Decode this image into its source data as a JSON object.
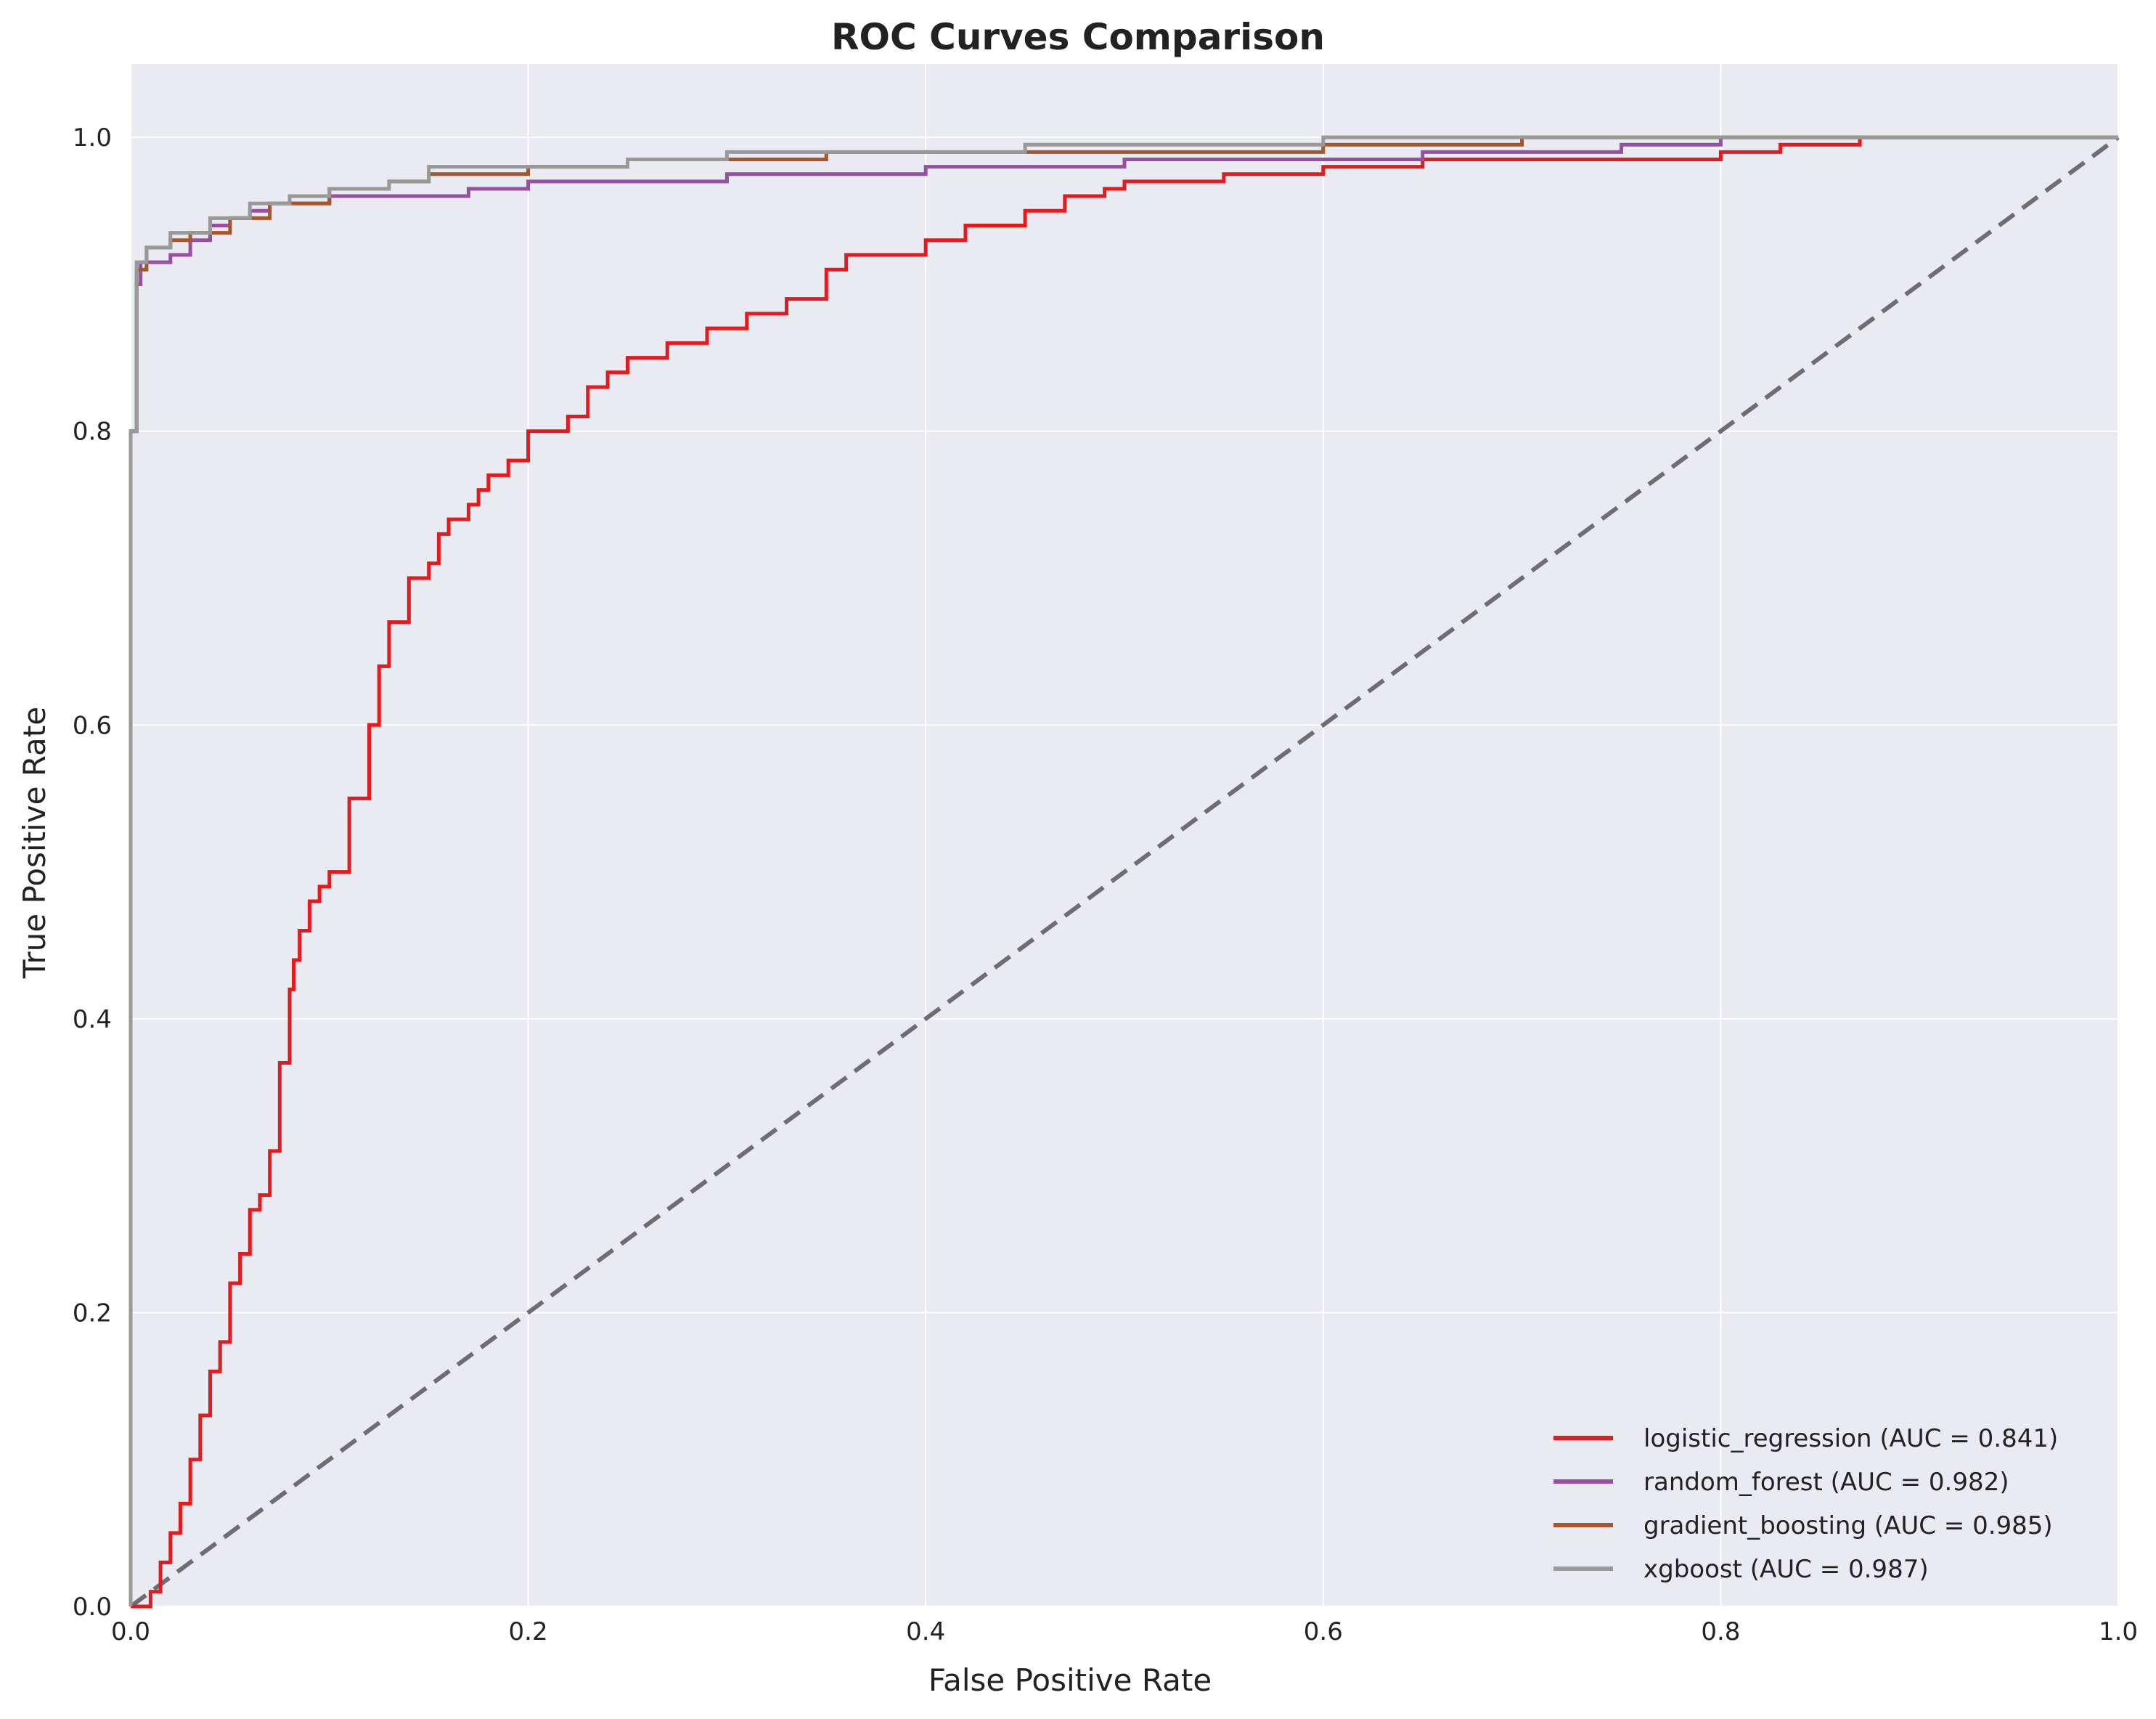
{
  "chart_data": {
    "type": "line",
    "title": "ROC Curves Comparison",
    "xlabel": "False Positive Rate",
    "ylabel": "True Positive Rate",
    "xlim": [
      0,
      1
    ],
    "ylim": [
      0,
      1.05
    ],
    "xticks": [
      "0.0",
      "0.2",
      "0.4",
      "0.6",
      "0.8",
      "1.0"
    ],
    "yticks": [
      "0.0",
      "0.2",
      "0.4",
      "0.6",
      "0.8",
      "1.0"
    ],
    "grid": true,
    "legend_position": "lower-right",
    "colors": {
      "background": "#eaeaf2",
      "grid": "#ffffff",
      "diagonal": "#6e6e72"
    },
    "series": [
      {
        "name": "logistic_regression (AUC = 0.841)",
        "color": "#e41a1c",
        "x": [
          0.0,
          0.01,
          0.015,
          0.02,
          0.025,
          0.03,
          0.035,
          0.04,
          0.045,
          0.05,
          0.055,
          0.06,
          0.065,
          0.07,
          0.075,
          0.08,
          0.082,
          0.085,
          0.09,
          0.095,
          0.1,
          0.11,
          0.12,
          0.125,
          0.13,
          0.14,
          0.15,
          0.155,
          0.16,
          0.17,
          0.175,
          0.18,
          0.19,
          0.2,
          0.22,
          0.23,
          0.24,
          0.25,
          0.27,
          0.29,
          0.31,
          0.33,
          0.35,
          0.36,
          0.38,
          0.4,
          0.42,
          0.45,
          0.47,
          0.49,
          0.5,
          0.55,
          0.6,
          0.65,
          0.66,
          0.7,
          0.8,
          0.83,
          0.87,
          0.9,
          1.0
        ],
        "y": [
          0.0,
          0.01,
          0.03,
          0.05,
          0.07,
          0.1,
          0.13,
          0.16,
          0.18,
          0.22,
          0.24,
          0.27,
          0.28,
          0.31,
          0.37,
          0.42,
          0.44,
          0.46,
          0.48,
          0.49,
          0.5,
          0.55,
          0.6,
          0.64,
          0.67,
          0.7,
          0.71,
          0.73,
          0.74,
          0.75,
          0.76,
          0.77,
          0.78,
          0.8,
          0.81,
          0.83,
          0.84,
          0.85,
          0.86,
          0.87,
          0.88,
          0.89,
          0.91,
          0.92,
          0.92,
          0.93,
          0.94,
          0.95,
          0.96,
          0.965,
          0.97,
          0.975,
          0.98,
          0.985,
          0.985,
          0.985,
          0.99,
          0.995,
          1.0,
          1.0,
          1.0
        ]
      },
      {
        "name": "random_forest (AUC = 0.982)",
        "color": "#984ea3",
        "x": [
          0.0,
          0.0,
          0.003,
          0.005,
          0.018,
          0.02,
          0.03,
          0.04,
          0.05,
          0.06,
          0.07,
          0.1,
          0.15,
          0.17,
          0.2,
          0.3,
          0.4,
          0.5,
          0.65,
          0.75,
          0.8,
          0.9,
          1.0
        ],
        "y": [
          0.0,
          0.8,
          0.9,
          0.915,
          0.915,
          0.92,
          0.93,
          0.94,
          0.945,
          0.95,
          0.955,
          0.96,
          0.96,
          0.965,
          0.97,
          0.975,
          0.98,
          0.985,
          0.99,
          0.995,
          1.0,
          1.0,
          1.0
        ]
      },
      {
        "name": "gradient_boosting (AUC = 0.985)",
        "color": "#a65628",
        "x": [
          0.0,
          0.0,
          0.003,
          0.008,
          0.02,
          0.03,
          0.05,
          0.07,
          0.1,
          0.13,
          0.15,
          0.2,
          0.25,
          0.35,
          0.45,
          0.6,
          0.7,
          0.8,
          0.83,
          1.0
        ],
        "y": [
          0.0,
          0.8,
          0.91,
          0.925,
          0.93,
          0.935,
          0.945,
          0.955,
          0.965,
          0.97,
          0.975,
          0.98,
          0.985,
          0.99,
          0.99,
          0.995,
          1.0,
          1.0,
          1.0,
          1.0
        ],
        "y_note": ""
      },
      {
        "name": "xgboost (AUC = 0.987)",
        "color": "#999999",
        "x": [
          0.0,
          0.0,
          0.003,
          0.008,
          0.02,
          0.04,
          0.06,
          0.08,
          0.1,
          0.13,
          0.15,
          0.25,
          0.3,
          0.45,
          0.6,
          0.8,
          1.0
        ],
        "y": [
          0.0,
          0.8,
          0.915,
          0.925,
          0.935,
          0.945,
          0.955,
          0.96,
          0.965,
          0.97,
          0.98,
          0.985,
          0.99,
          0.995,
          1.0,
          1.0,
          1.0
        ]
      }
    ],
    "diagonal": {
      "x": [
        0,
        1
      ],
      "y": [
        0,
        1
      ]
    }
  }
}
